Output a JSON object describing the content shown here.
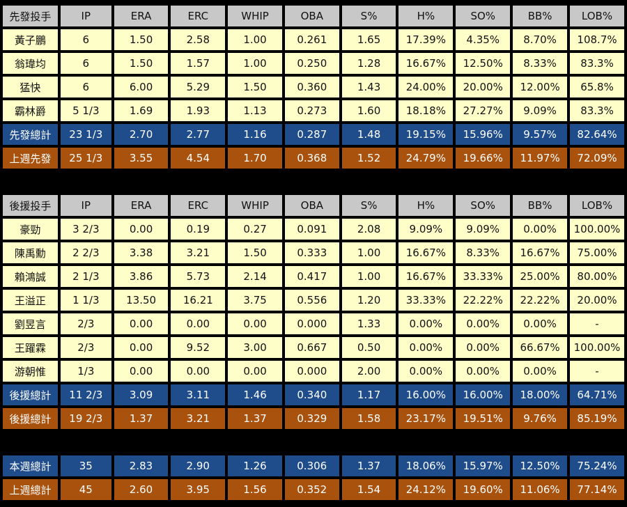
{
  "headers": [
    "IP",
    "ERA",
    "ERC",
    "WHIP",
    "OBA",
    "S%",
    "H%",
    "SO%",
    "BB%",
    "LOB%"
  ],
  "starters": {
    "title": "先發投手",
    "rows": [
      [
        "黃子鵬",
        "6",
        "1.50",
        "2.58",
        "1.00",
        "0.261",
        "1.65",
        "17.39%",
        "4.35%",
        "8.70%",
        "108.7%"
      ],
      [
        "翁瑋均",
        "6",
        "1.50",
        "1.57",
        "1.00",
        "0.250",
        "1.28",
        "16.67%",
        "12.50%",
        "8.33%",
        "83.3%"
      ],
      [
        "猛快",
        "6",
        "6.00",
        "5.29",
        "1.50",
        "0.360",
        "1.43",
        "24.00%",
        "20.00%",
        "12.00%",
        "65.8%"
      ],
      [
        "霸林爵",
        "5 1/3",
        "1.69",
        "1.93",
        "1.13",
        "0.273",
        "1.60",
        "18.18%",
        "27.27%",
        "9.09%",
        "83.3%"
      ]
    ],
    "total": [
      "先發總計",
      "23 1/3",
      "2.70",
      "2.77",
      "1.16",
      "0.287",
      "1.48",
      "19.15%",
      "15.96%",
      "9.57%",
      "82.64%"
    ],
    "last_week": [
      "上週先發",
      "25 1/3",
      "3.55",
      "4.54",
      "1.70",
      "0.368",
      "1.52",
      "24.79%",
      "19.66%",
      "11.97%",
      "72.09%"
    ]
  },
  "relievers": {
    "title": "後援投手",
    "rows": [
      [
        "豪勁",
        "3 2/3",
        "0.00",
        "0.19",
        "0.27",
        "0.091",
        "2.08",
        "9.09%",
        "9.09%",
        "0.00%",
        "100.00%"
      ],
      [
        "陳禹勳",
        "2 2/3",
        "3.38",
        "3.21",
        "1.50",
        "0.333",
        "1.00",
        "16.67%",
        "8.33%",
        "16.67%",
        "75.00%"
      ],
      [
        "賴鴻誠",
        "2 1/3",
        "3.86",
        "5.73",
        "2.14",
        "0.417",
        "1.00",
        "16.67%",
        "33.33%",
        "25.00%",
        "80.00%"
      ],
      [
        "王溢正",
        "1 1/3",
        "13.50",
        "16.21",
        "3.75",
        "0.556",
        "1.20",
        "33.33%",
        "22.22%",
        "22.22%",
        "20.00%"
      ],
      [
        "劉昱言",
        "2/3",
        "0.00",
        "0.00",
        "0.00",
        "0.000",
        "1.33",
        "0.00%",
        "0.00%",
        "0.00%",
        "-"
      ],
      [
        "王躍霖",
        "2/3",
        "0.00",
        "9.52",
        "3.00",
        "0.667",
        "0.50",
        "0.00%",
        "0.00%",
        "66.67%",
        "100.00%"
      ],
      [
        "游朝惟",
        "1/3",
        "0.00",
        "0.00",
        "0.00",
        "0.000",
        "2.00",
        "0.00%",
        "0.00%",
        "0.00%",
        "-"
      ]
    ],
    "total": [
      "後援總計",
      "11 2/3",
      "3.09",
      "3.11",
      "1.46",
      "0.340",
      "1.17",
      "16.00%",
      "16.00%",
      "18.00%",
      "64.71%"
    ],
    "last_week": [
      "後援總計",
      "19 2/3",
      "1.37",
      "3.21",
      "1.37",
      "0.329",
      "1.58",
      "23.17%",
      "19.51%",
      "9.76%",
      "85.19%"
    ]
  },
  "totals": {
    "this_week": [
      "本週總計",
      "35",
      "2.83",
      "2.90",
      "1.26",
      "0.306",
      "1.37",
      "18.06%",
      "15.97%",
      "12.50%",
      "75.24%"
    ],
    "last_week": [
      "上週總計",
      "45",
      "2.60",
      "3.95",
      "1.56",
      "0.352",
      "1.54",
      "24.12%",
      "19.60%",
      "11.06%",
      "77.14%"
    ]
  }
}
